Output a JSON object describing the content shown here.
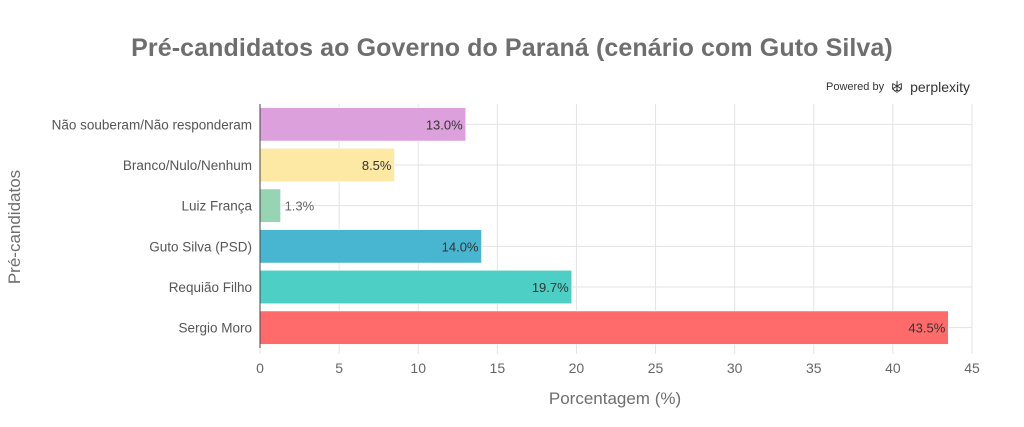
{
  "header": {
    "title": "Pré-candidatos ao Governo do Paraná (cenário com Guto Silva)",
    "powered_by": "Powered by",
    "brand": "perplexity",
    "brand_logo_icon": "perplexity-logo-icon"
  },
  "chart_data": {
    "type": "bar",
    "orientation": "horizontal",
    "title": "Pré-candidatos ao Governo do Paraná (cenário com Guto Silva)",
    "xlabel": "Porcentagem (%)",
    "ylabel": "Pré-candidatos",
    "xlim": [
      0,
      45
    ],
    "xticks": [
      0,
      5,
      10,
      15,
      20,
      25,
      30,
      35,
      40,
      45
    ],
    "grid": true,
    "categories": [
      "Não souberam/Não responderam",
      "Branco/Nulo/Nenhum",
      "Luiz França",
      "Guto Silva (PSD)",
      "Requião Filho",
      "Sergio Moro"
    ],
    "values": [
      13.0,
      8.5,
      1.3,
      14.0,
      19.7,
      43.5
    ],
    "labels": [
      "13.0%",
      "8.5%",
      "1.3%",
      "14.0%",
      "19.7%",
      "43.5%"
    ],
    "colors": [
      "#dca0dc",
      "#fde9a4",
      "#97d4b4",
      "#49b6d1",
      "#4ecfc5",
      "#ff6b6b"
    ]
  }
}
